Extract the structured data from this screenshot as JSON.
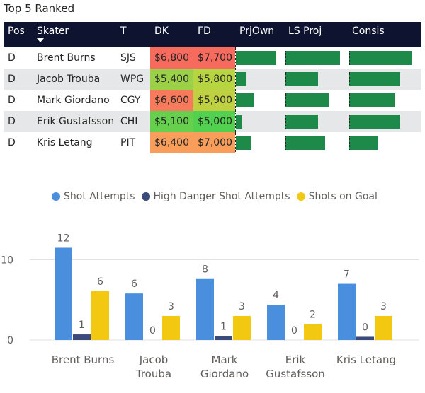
{
  "title": "Top 5 Ranked",
  "table": {
    "headers": [
      "Pos",
      "Skater",
      "T",
      "DK",
      "FD",
      "PrjOwn",
      "LS Proj",
      "Consis"
    ],
    "rows": [
      {
        "pos": "D",
        "skater": "Brent Burns",
        "team": "SJS",
        "dk": "$6,800",
        "fd": "$7,700",
        "dk_color": "#f66b5e",
        "fd_color": "#f66b5e",
        "prjown": 0.95,
        "lsproj": 0.99,
        "consis": 0.99
      },
      {
        "pos": "D",
        "skater": "Jacob Trouba",
        "team": "WPG",
        "dk": "$5,400",
        "fd": "$5,800",
        "dk_color": "#9bd049",
        "fd_color": "#b7d541",
        "prjown": 0.25,
        "lsproj": 0.58,
        "consis": 0.81
      },
      {
        "pos": "D",
        "skater": "Mark Giordano",
        "team": "CGY",
        "dk": "$6,600",
        "fd": "$5,900",
        "dk_color": "#f77a5c",
        "fd_color": "#bfd143",
        "prjown": 0.42,
        "lsproj": 0.78,
        "consis": 0.73
      },
      {
        "pos": "D",
        "skater": "Erik Gustafsson",
        "team": "CHI",
        "dk": "$5,100",
        "fd": "$5,000",
        "dk_color": "#66cf4e",
        "fd_color": "#52d150",
        "prjown": 0.16,
        "lsproj": 0.58,
        "consis": 0.81
      },
      {
        "pos": "D",
        "skater": "Kris Letang",
        "team": "PIT",
        "dk": "$6,400",
        "fd": "$7,000",
        "dk_color": "#f99e5a",
        "fd_color": "#f99e5a",
        "prjown": 0.37,
        "lsproj": 0.71,
        "consis": 0.44
      }
    ]
  },
  "chart_data": {
    "type": "bar",
    "categories": [
      [
        "Brent Burns"
      ],
      [
        "Jacob",
        "Trouba"
      ],
      [
        "Mark",
        "Giordano"
      ],
      [
        "Erik",
        "Gustafsson"
      ],
      [
        "Kris Letang"
      ]
    ],
    "series": [
      {
        "name": "Shot Attempts",
        "color": "#4a8ede",
        "values": [
          12,
          6,
          8,
          4,
          7
        ]
      },
      {
        "name": "High Danger Shot Attempts",
        "color": "#3a4a7a",
        "values": [
          1,
          0,
          1,
          0,
          0
        ]
      },
      {
        "name": "Shots on Goal",
        "color": "#f2c811",
        "values": [
          6,
          3,
          3,
          2,
          3
        ]
      }
    ],
    "render_heights": {
      "Shot Attempts": [
        11.5,
        5.8,
        7.6,
        4.4,
        7.0
      ],
      "High Danger Shot Attempts": [
        0.7,
        0,
        0.5,
        0,
        0.4
      ],
      "Shots on Goal": [
        6.1,
        3.0,
        3.0,
        2.0,
        3.0
      ]
    },
    "yticks": [
      "0",
      "10"
    ],
    "ylim": [
      0,
      13.5
    ]
  }
}
